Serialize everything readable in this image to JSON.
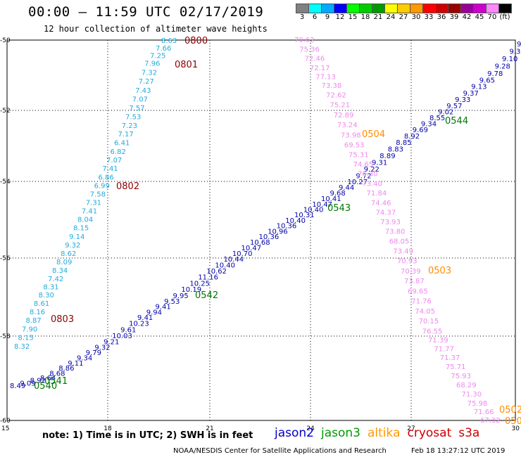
{
  "title": "00:00 – 11:59 UTC 02/17/2019",
  "subtitle": "12 hour collection of altimeter wave heights",
  "colorbar": {
    "colors": [
      "#808080",
      "#00ffff",
      "#00aaff",
      "#0000ff",
      "#00ff00",
      "#00cc00",
      "#009900",
      "#ffff00",
      "#ffcc00",
      "#ff9900",
      "#ff0000",
      "#cc0000",
      "#990000",
      "#990099",
      "#cc00cc",
      "#ff88ff",
      "#000000"
    ],
    "labels": [
      "3",
      "6",
      "9",
      "12",
      "15",
      "18",
      "21",
      "24",
      "27",
      "30",
      "33",
      "36",
      "39",
      "42",
      "45",
      "70",
      "(ft)"
    ]
  },
  "map": {
    "x_ticks": [
      "15",
      "18",
      "21",
      "24",
      "27",
      "30"
    ],
    "y_ticks": [
      "-50",
      "-52",
      "-54",
      "-56",
      "-58",
      "-60"
    ]
  },
  "tracks": {
    "cryosat_left": {
      "color": "#22aadd",
      "values": [
        "8.63",
        "7.66",
        "7.25",
        "7.96",
        "7.32",
        "7.27",
        "7.43",
        "7.07",
        "7.57",
        "7.53",
        "7.23",
        "7.17",
        "6.41",
        "6.82",
        "7.07",
        "7.41",
        "6.86",
        "6.99",
        "7.58",
        "7.31",
        "7.41",
        "8.04",
        "8.15",
        "9.14",
        "9.32",
        "8.62",
        "8.09",
        "8.34",
        "7.42",
        "8.31",
        "8.30",
        "8.61",
        "8.16",
        "8.87",
        "7.90",
        "8.15",
        "8.32"
      ]
    },
    "jason2_diag": {
      "color": "#0000aa",
      "values": [
        "9.80",
        "9.30",
        "9.10",
        "9.28",
        "9.78",
        "9.65",
        "9.13",
        "9.37",
        "9.33",
        "9.57",
        "9.02",
        "8.55",
        "9.34",
        "9.69",
        "8.92",
        "8.85",
        "8.83",
        "8.89",
        "9.31",
        "9.22",
        "9.72",
        "10.27",
        "9.44",
        "9.68",
        "10.41",
        "10.47",
        "10.40",
        "10.31",
        "10.40",
        "10.36",
        "10.96",
        "10.36",
        "10.68",
        "10.47",
        "10.70",
        "10.44",
        "10.40",
        "10.62",
        "11.16",
        "10.25",
        "10.19",
        "9.95",
        "9.53",
        "9.41",
        "9.94",
        "9.41",
        "10.23",
        "9.61",
        "10.03",
        "9.21",
        "9.32",
        "9.79",
        "9.34",
        "9.11",
        "8.86",
        "8.68",
        "8.64",
        "8.92",
        "9.09",
        "8.49"
      ]
    },
    "pink_track": {
      "color": "#ee88ee",
      "values": [
        "70.62",
        "75.36",
        "72.46",
        "72.17",
        "77.13",
        "73.38",
        "72.62",
        "75.21",
        "72.89",
        "73.24",
        "73.98",
        "69.53",
        "75.31",
        "74.65",
        "76.30",
        "73.40",
        "71.84",
        "74.46",
        "74.37",
        "73.93",
        "73.80",
        "68.05",
        "73.49",
        "70.93",
        "70.39",
        "73.87",
        "69.65",
        "71.76",
        "74.05",
        "70.15",
        "76.55",
        "71.39",
        "71.77",
        "71.37",
        "75.71",
        "75.93",
        "68.29",
        "71.30",
        "75.98",
        "71.66",
        "67.32"
      ]
    },
    "time_labels": [
      {
        "text": "0800",
        "color": "#8b0000"
      },
      {
        "text": "0801",
        "color": "#8b0000"
      },
      {
        "text": "0802",
        "color": "#8b0000"
      },
      {
        "text": "0803",
        "color": "#8b0000"
      },
      {
        "text": "0504",
        "color": "#ff8c00"
      },
      {
        "text": "0503",
        "color": "#ff8c00"
      },
      {
        "text": "0502",
        "color": "#ff8c00"
      },
      {
        "text": "050",
        "color": "#ff8c00"
      },
      {
        "text": "0544",
        "color": "#007700"
      },
      {
        "text": "0543",
        "color": "#007700"
      },
      {
        "text": "0542",
        "color": "#007700"
      },
      {
        "text": "0541",
        "color": "#007700"
      },
      {
        "text": "0540",
        "color": "#007700"
      }
    ]
  },
  "note": "note: 1) Time is in UTC; 2) SWH is in feet",
  "legend": [
    {
      "label": "jason2",
      "color": "#0000cc"
    },
    {
      "label": "jason3",
      "color": "#009900"
    },
    {
      "label": "altika",
      "color": "#ff9900"
    },
    {
      "label": "cryosat",
      "color": "#cc0000"
    },
    {
      "label": "s3a",
      "color": "#cc0000"
    }
  ],
  "credit": "NOAA/NESDIS Center for Satellite Applications and Research",
  "stamp": "Feb 18 13:27:12 UTC 2019"
}
